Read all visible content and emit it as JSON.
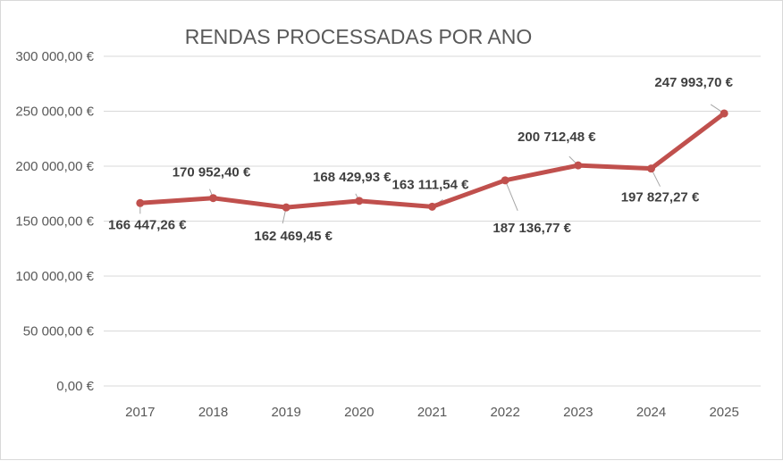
{
  "chart_data": {
    "type": "line",
    "title": "RENDAS PROCESSADAS POR ANO",
    "xlabel": "",
    "ylabel": "",
    "categories": [
      "2017",
      "2018",
      "2019",
      "2020",
      "2021",
      "2022",
      "2023",
      "2024",
      "2025"
    ],
    "series": [
      {
        "values": [
          166447.26,
          170952.4,
          162469.45,
          168429.93,
          163111.54,
          187136.77,
          200712.48,
          197827.27,
          247993.7
        ],
        "data_labels": [
          "166 447,26 €",
          "170 952,40 €",
          "162 469,45 €",
          "168 429,93 €",
          "163 111,54 €",
          "187 136,77 €",
          "200 712,48 €",
          "197 827,27 €",
          "247 993,70 €"
        ],
        "color": "#c0504d"
      }
    ],
    "ylim": [
      0,
      300000
    ],
    "y_ticks": [
      0,
      50000,
      100000,
      150000,
      200000,
      250000,
      300000
    ],
    "y_tick_labels": [
      "0,00 €",
      "50 000,00 €",
      "100 000,00 €",
      "150 000,00 €",
      "200 000,00 €",
      "250 000,00 €",
      "300 000,00 €"
    ],
    "grid": true,
    "legend": "none"
  }
}
